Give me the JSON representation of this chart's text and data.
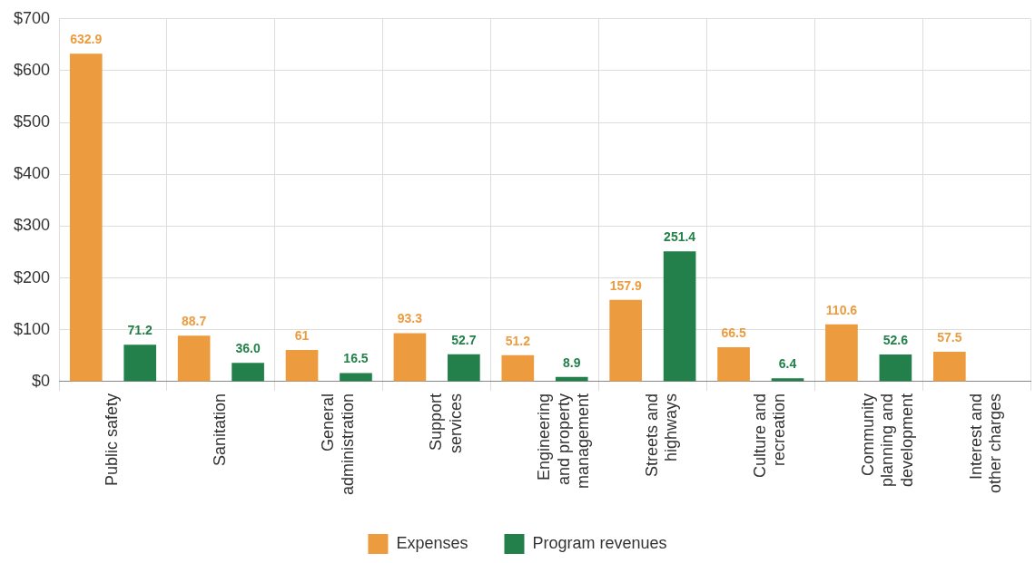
{
  "chart_data": {
    "type": "bar",
    "categories": [
      "Public safety",
      "Sanitation",
      "General administration",
      "Support services",
      "Engineering and property management",
      "Streets and highways",
      "Culture and recreation",
      "Community planning and development",
      "Interest and other charges"
    ],
    "series": [
      {
        "name": "Expenses",
        "color": "#ec9b3e",
        "values": [
          632.9,
          88.7,
          61,
          93.3,
          51.2,
          157.9,
          66.5,
          110.6,
          57.5
        ],
        "value_labels": [
          "632.9",
          "88.7",
          "61",
          "93.3",
          "51.2",
          "157.9",
          "66.5",
          "110.6",
          "57.5"
        ]
      },
      {
        "name": "Program revenues",
        "color": "#23804a",
        "values": [
          71.2,
          36.0,
          16.5,
          52.7,
          8.9,
          251.4,
          6.4,
          52.6,
          null
        ],
        "value_labels": [
          "71.2",
          "36.0",
          "16.5",
          "52.7",
          "8.9",
          "251.4",
          "6.4",
          "52.6",
          null
        ]
      }
    ],
    "ylim": [
      0,
      700
    ],
    "yticks": [
      {
        "value": 0,
        "label": "$0"
      },
      {
        "value": 100,
        "label": "$100"
      },
      {
        "value": 200,
        "label": "$200"
      },
      {
        "value": 300,
        "label": "$300"
      },
      {
        "value": 400,
        "label": "$400"
      },
      {
        "value": 500,
        "label": "$500"
      },
      {
        "value": 600,
        "label": "$600"
      },
      {
        "value": 700,
        "label": "$700"
      }
    ],
    "grid": true,
    "legend": "bottom"
  }
}
